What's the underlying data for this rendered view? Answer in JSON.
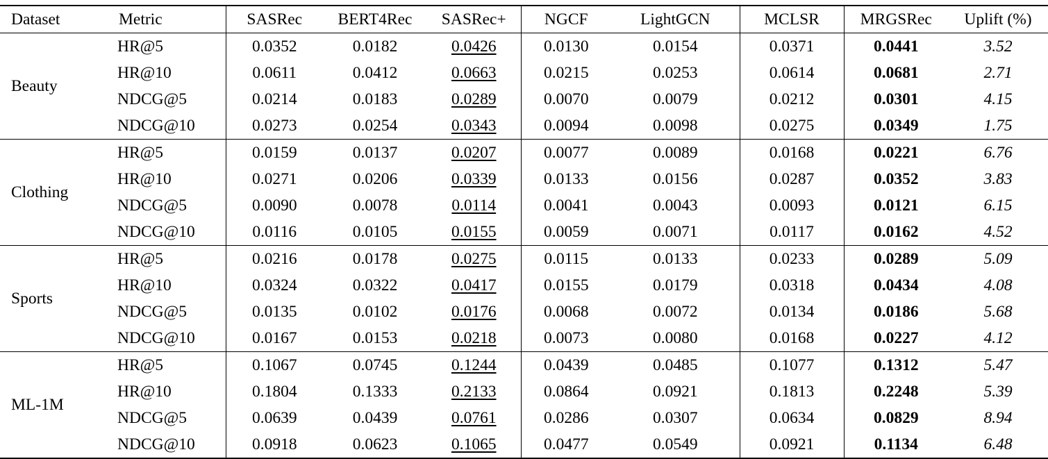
{
  "table": {
    "columns": [
      "Dataset",
      "Metric",
      "SASRec",
      "BERT4Rec",
      "SASRec+",
      "NGCF",
      "LightGCN",
      "MCLSR",
      "MRGSRec",
      "Uplift (%)"
    ],
    "groups": [
      {
        "dataset": "Beauty",
        "rows": [
          {
            "metric": "HR@5",
            "values": [
              "0.0352",
              "0.0182",
              "0.0426",
              "0.0130",
              "0.0154",
              "0.0371",
              "0.0441"
            ],
            "uplift": "3.52"
          },
          {
            "metric": "HR@10",
            "values": [
              "0.0611",
              "0.0412",
              "0.0663",
              "0.0215",
              "0.0253",
              "0.0614",
              "0.0681"
            ],
            "uplift": "2.71"
          },
          {
            "metric": "NDCG@5",
            "values": [
              "0.0214",
              "0.0183",
              "0.0289",
              "0.0070",
              "0.0079",
              "0.0212",
              "0.0301"
            ],
            "uplift": "4.15"
          },
          {
            "metric": "NDCG@10",
            "values": [
              "0.0273",
              "0.0254",
              "0.0343",
              "0.0094",
              "0.0098",
              "0.0275",
              "0.0349"
            ],
            "uplift": "1.75"
          }
        ]
      },
      {
        "dataset": "Clothing",
        "rows": [
          {
            "metric": "HR@5",
            "values": [
              "0.0159",
              "0.0137",
              "0.0207",
              "0.0077",
              "0.0089",
              "0.0168",
              "0.0221"
            ],
            "uplift": "6.76"
          },
          {
            "metric": "HR@10",
            "values": [
              "0.0271",
              "0.0206",
              "0.0339",
              "0.0133",
              "0.0156",
              "0.0287",
              "0.0352"
            ],
            "uplift": "3.83"
          },
          {
            "metric": "NDCG@5",
            "values": [
              "0.0090",
              "0.0078",
              "0.0114",
              "0.0041",
              "0.0043",
              "0.0093",
              "0.0121"
            ],
            "uplift": "6.15"
          },
          {
            "metric": "NDCG@10",
            "values": [
              "0.0116",
              "0.0105",
              "0.0155",
              "0.0059",
              "0.0071",
              "0.0117",
              "0.0162"
            ],
            "uplift": "4.52"
          }
        ]
      },
      {
        "dataset": "Sports",
        "rows": [
          {
            "metric": "HR@5",
            "values": [
              "0.0216",
              "0.0178",
              "0.0275",
              "0.0115",
              "0.0133",
              "0.0233",
              "0.0289"
            ],
            "uplift": "5.09"
          },
          {
            "metric": "HR@10",
            "values": [
              "0.0324",
              "0.0322",
              "0.0417",
              "0.0155",
              "0.0179",
              "0.0318",
              "0.0434"
            ],
            "uplift": "4.08"
          },
          {
            "metric": "NDCG@5",
            "values": [
              "0.0135",
              "0.0102",
              "0.0176",
              "0.0068",
              "0.0072",
              "0.0134",
              "0.0186"
            ],
            "uplift": "5.68"
          },
          {
            "metric": "NDCG@10",
            "values": [
              "0.0167",
              "0.0153",
              "0.0218",
              "0.0073",
              "0.0080",
              "0.0168",
              "0.0227"
            ],
            "uplift": "4.12"
          }
        ]
      },
      {
        "dataset": "ML-1M",
        "rows": [
          {
            "metric": "HR@5",
            "values": [
              "0.1067",
              "0.0745",
              "0.1244",
              "0.0439",
              "0.0485",
              "0.1077",
              "0.1312"
            ],
            "uplift": "5.47"
          },
          {
            "metric": "HR@10",
            "values": [
              "0.1804",
              "0.1333",
              "0.2133",
              "0.0864",
              "0.0921",
              "0.1813",
              "0.2248"
            ],
            "uplift": "5.39"
          },
          {
            "metric": "NDCG@5",
            "values": [
              "0.0639",
              "0.0439",
              "0.0761",
              "0.0286",
              "0.0307",
              "0.0634",
              "0.0829"
            ],
            "uplift": "8.94"
          },
          {
            "metric": "NDCG@10",
            "values": [
              "0.0918",
              "0.0623",
              "0.1065",
              "0.0477",
              "0.0549",
              "0.0921",
              "0.1134"
            ],
            "uplift": "6.48"
          }
        ]
      }
    ],
    "styling_notes": {
      "underlined_column": "SASRec+",
      "bold_column": "MRGSRec",
      "italic_column": "Uplift (%)"
    }
  }
}
